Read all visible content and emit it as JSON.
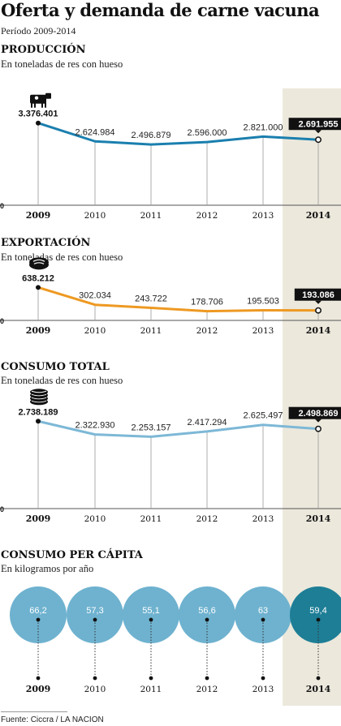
{
  "header": {
    "title": "Oferta y demanda de carne vacuna",
    "subtitle": "Período 2009-2014"
  },
  "colors": {
    "produccion": "#1a7fae",
    "exportacion": "#ee9922",
    "consumo": "#7db8d6",
    "bubble": "#6eb2cf",
    "bubble_highlight": "#1d7e96",
    "highlight_band": "#ece8dc"
  },
  "icons": {
    "produccion": "cow-icon",
    "exportacion": "steak-icon",
    "consumo": "meat-plate-icon"
  },
  "source": "Fuente:  Ciccra / LA NACION",
  "chart_data": [
    {
      "type": "line",
      "title": "PRODUCCIÓN",
      "ylabel": "En toneladas de res con hueso",
      "x": [
        "2009",
        "2010",
        "2011",
        "2012",
        "2013",
        "2014"
      ],
      "values": [
        3376401,
        2624984,
        2496879,
        2596000,
        2821000,
        2691955
      ],
      "labels": [
        "3.376.401",
        "2.624.984",
        "2.496.879",
        "2.596.000",
        "2.821.000",
        "2.691.955"
      ],
      "baseline_label": "0",
      "ylim": [
        0,
        3600000
      ],
      "highlight": "2014"
    },
    {
      "type": "line",
      "title": "EXPORTACIÓN",
      "ylabel": "En toneladas de res con hueso",
      "x": [
        "2009",
        "2010",
        "2011",
        "2012",
        "2013",
        "2014"
      ],
      "values": [
        638212,
        302034,
        243722,
        178706,
        195503,
        193086
      ],
      "labels": [
        "638.212",
        "302.034",
        "243.722",
        "178.706",
        "195.503",
        "193.086"
      ],
      "baseline_label": "0",
      "ylim": [
        0,
        800000
      ],
      "highlight": "2014"
    },
    {
      "type": "line",
      "title": "CONSUMO TOTAL",
      "ylabel": "En toneladas de res con hueso",
      "x": [
        "2009",
        "2010",
        "2011",
        "2012",
        "2013",
        "2014"
      ],
      "values": [
        2738189,
        2322930,
        2253157,
        2417294,
        2625497,
        2498869
      ],
      "labels": [
        "2.738.189",
        "2.322.930",
        "2.253.157",
        "2.417.294",
        "2.625.497",
        "2.498.869"
      ],
      "baseline_label": "0",
      "ylim": [
        0,
        3050000
      ],
      "highlight": "2014"
    },
    {
      "type": "bubble",
      "title": "CONSUMO PER CÁPITA",
      "ylabel": "En kilogramos por año",
      "x": [
        "2009",
        "2010",
        "2011",
        "2012",
        "2013",
        "2014"
      ],
      "values": [
        66.2,
        57.3,
        55.1,
        56.6,
        63,
        59.4
      ],
      "labels": [
        "66,2",
        "57,3",
        "55,1",
        "56,6",
        "63",
        "59,4"
      ],
      "highlight": "2014"
    }
  ]
}
